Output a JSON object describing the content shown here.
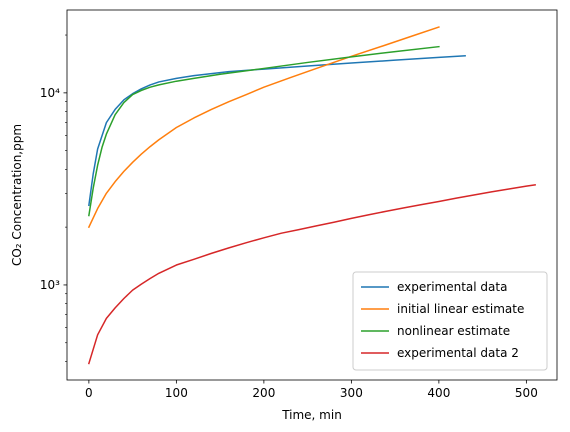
{
  "chart_data": {
    "type": "line",
    "xlabel": "Time, min",
    "ylabel": "CO₂ Concentration,ppm",
    "xscale": "linear",
    "yscale": "log",
    "xlim": [
      -25,
      535
    ],
    "ylim": [
      320,
      27000
    ],
    "xticks": [
      0,
      100,
      200,
      300,
      400,
      500
    ],
    "yticks": [
      1000,
      10000
    ],
    "ytick_labels": [
      "10³",
      "10⁴"
    ],
    "grid": false,
    "legend_position": "lower right",
    "series": [
      {
        "name": "experimental data",
        "color": "#1f77b4",
        "x": [
          0,
          5,
          10,
          20,
          30,
          40,
          50,
          60,
          70,
          80,
          100,
          120,
          140,
          160,
          200,
          250,
          300,
          350,
          400,
          430
        ],
        "y": [
          2600,
          3800,
          5100,
          7000,
          8200,
          9200,
          9900,
          10500,
          11000,
          11400,
          11900,
          12300,
          12600,
          12900,
          13300,
          13800,
          14300,
          14800,
          15300,
          15600
        ]
      },
      {
        "name": "initial linear estimate",
        "color": "#ff7f0e",
        "x": [
          0,
          10,
          20,
          30,
          40,
          50,
          60,
          70,
          80,
          100,
          120,
          140,
          160,
          180,
          200,
          230,
          260,
          300,
          340,
          370,
          400
        ],
        "y": [
          2000,
          2500,
          3000,
          3450,
          3900,
          4350,
          4800,
          5250,
          5700,
          6600,
          7400,
          8200,
          9000,
          9800,
          10700,
          12000,
          13400,
          15500,
          17800,
          19800,
          22000
        ]
      },
      {
        "name": "nonlinear estimate",
        "color": "#2ca02c",
        "x": [
          0,
          5,
          10,
          15,
          20,
          30,
          40,
          50,
          60,
          70,
          80,
          100,
          120,
          150,
          200,
          250,
          300,
          350,
          400
        ],
        "y": [
          2300,
          3200,
          4200,
          5200,
          6100,
          7700,
          8900,
          9800,
          10300,
          10700,
          11000,
          11500,
          11900,
          12500,
          13400,
          14400,
          15400,
          16400,
          17400
        ]
      },
      {
        "name": "experimental data 2",
        "color": "#d62728",
        "x": [
          0,
          10,
          20,
          30,
          40,
          50,
          60,
          70,
          80,
          100,
          120,
          140,
          160,
          180,
          200,
          220,
          240,
          260,
          280,
          300,
          320,
          340,
          360,
          380,
          400,
          420,
          440,
          460,
          480,
          500,
          510
        ],
        "y": [
          390,
          550,
          670,
          760,
          850,
          940,
          1010,
          1080,
          1150,
          1270,
          1360,
          1460,
          1560,
          1660,
          1760,
          1860,
          1940,
          2030,
          2120,
          2220,
          2320,
          2420,
          2520,
          2620,
          2720,
          2830,
          2940,
          3050,
          3160,
          3270,
          3320
        ]
      }
    ]
  }
}
